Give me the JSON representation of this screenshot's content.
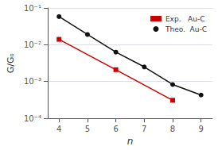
{
  "chart_data": {
    "type": "line",
    "xlabel": "n",
    "ylabel": "G/Gₒ",
    "series": [
      {
        "name": "Exp.   Au-C",
        "color": "#cc0000",
        "marker": "square",
        "x": [
          4,
          6,
          8
        ],
        "values": [
          0.014,
          0.0021,
          0.00031
        ]
      },
      {
        "name": "Theo.  Au-C",
        "color": "#111111",
        "marker": "circle",
        "x": [
          4,
          5,
          6,
          7,
          8,
          9
        ],
        "values": [
          0.058,
          0.019,
          0.0063,
          0.0025,
          0.00083,
          0.00043
        ]
      }
    ],
    "xlim": [
      3.6,
      9.4
    ],
    "xticks": [
      4,
      5,
      6,
      7,
      8,
      9
    ],
    "ylim": [
      0.0001,
      0.1
    ],
    "yticks": [
      {
        "value": 0.0001,
        "label": "10⁻⁴"
      },
      {
        "value": 0.001,
        "label": "10⁻³"
      },
      {
        "value": 0.01,
        "label": "10⁻²"
      },
      {
        "value": 0.1,
        "label": "10⁻¹"
      }
    ],
    "log": "y",
    "grid": "y",
    "legend": "upper right"
  }
}
